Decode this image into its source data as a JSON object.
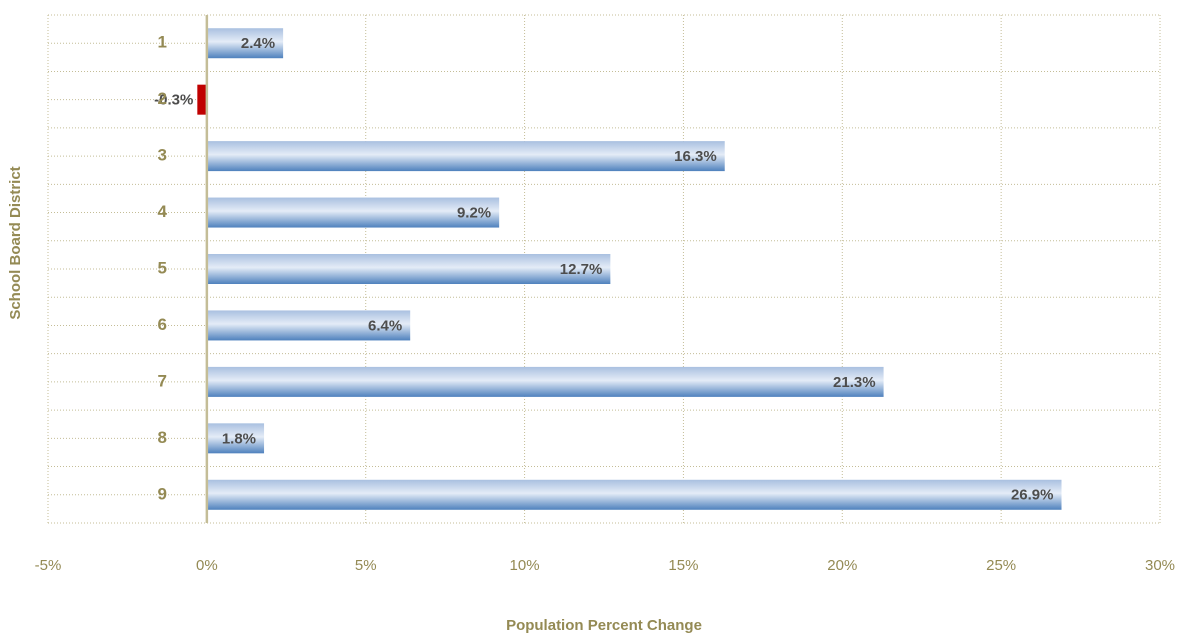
{
  "chart_data": {
    "type": "bar",
    "orientation": "horizontal",
    "x_label": "Population Percent Change",
    "y_label": "School Board District",
    "categories": [
      "1",
      "2",
      "3",
      "4",
      "5",
      "6",
      "7",
      "8",
      "9"
    ],
    "values": [
      2.4,
      -0.3,
      16.3,
      9.2,
      12.7,
      6.4,
      21.3,
      1.8,
      26.9
    ],
    "value_labels": [
      "2.4%",
      "-0.3%",
      "16.3%",
      "9.2%",
      "12.7%",
      "6.4%",
      "21.3%",
      "1.8%",
      "26.9%"
    ],
    "color": "#4f81bd",
    "negative_color": "#c00000",
    "xlim": [
      -5,
      30
    ],
    "xticks": [
      {
        "value": -5,
        "label": "-5%"
      },
      {
        "value": 0,
        "label": "0%"
      },
      {
        "value": 5,
        "label": "5%"
      },
      {
        "value": 10,
        "label": "10%"
      },
      {
        "value": 15,
        "label": "15%"
      },
      {
        "value": 20,
        "label": "20%"
      },
      {
        "value": 25,
        "label": "25%"
      },
      {
        "value": 30,
        "label": "30%"
      }
    ],
    "grid": true
  }
}
